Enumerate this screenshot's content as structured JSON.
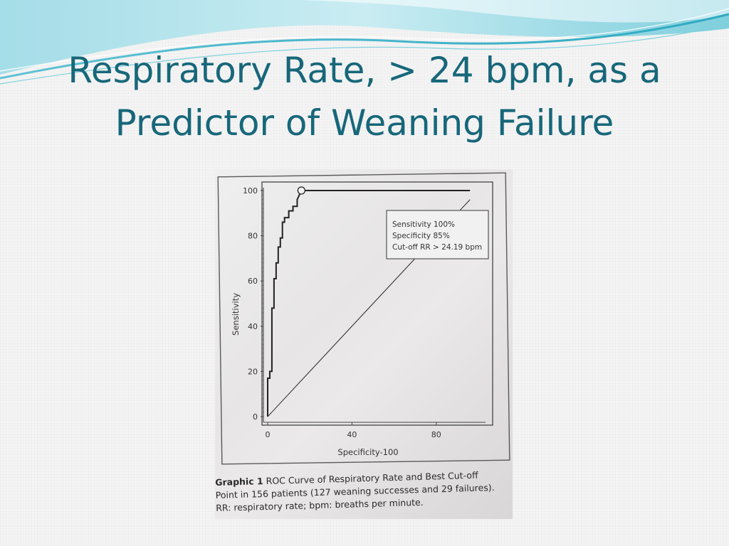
{
  "slide": {
    "title_line1": "Respiratory Rate, > 24 bpm, as a",
    "title_line2": "Predictor of Weaning Failure",
    "accent_color": "#17677a",
    "wave_colors": [
      "#7fd0de",
      "#aee2ec",
      "#5bbfd3"
    ]
  },
  "figure": {
    "caption_label": "Graphic 1",
    "caption_line1": "ROC Curve of Respiratory Rate and Best Cut-off",
    "caption_line2": "Point in 156 patients (127 weaning successes and 29 failures).",
    "caption_line3": "RR: respiratory rate; bpm: breaths per minute."
  },
  "chart_data": {
    "type": "line",
    "xlabel": "Specificity-100",
    "ylabel": "Sensitivity",
    "xlim": [
      0,
      100
    ],
    "ylim": [
      0,
      100
    ],
    "x_ticks": [
      0,
      40,
      80
    ],
    "y_ticks": [
      0,
      20,
      40,
      60,
      80,
      100
    ],
    "grid": false,
    "series": [
      {
        "x": [
          0,
          0,
          1,
          1,
          2,
          2,
          3,
          3,
          4,
          4,
          5,
          5,
          6,
          6,
          7,
          7,
          8,
          8,
          10,
          10,
          12,
          12,
          14,
          14,
          16,
          96
        ],
        "y": [
          0,
          17,
          17,
          20,
          20,
          48,
          48,
          61,
          61,
          68,
          68,
          75,
          75,
          79,
          79,
          86,
          86,
          88,
          88,
          91,
          91,
          93,
          93,
          96,
          100,
          100
        ]
      },
      {
        "x": [
          0,
          96
        ],
        "y": [
          0,
          96
        ]
      }
    ],
    "annotation": {
      "line1": "Sensitivity 100%",
      "line2": "Specificity 85%",
      "line3": "Cut-off RR > 24.19 bpm"
    },
    "marker": {
      "x": 16,
      "y": 100
    }
  }
}
